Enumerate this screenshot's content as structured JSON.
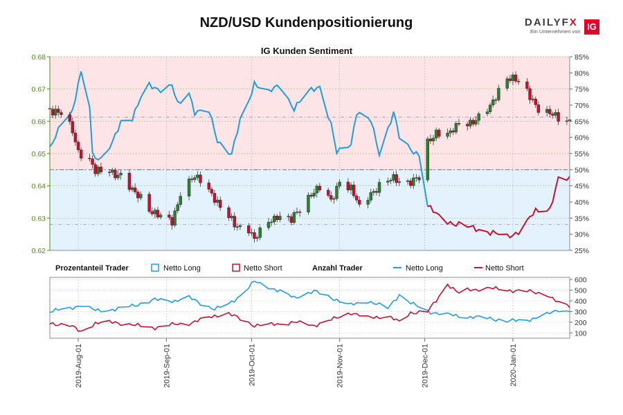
{
  "header": {
    "title": "NZD/USD Kundenpositionierung",
    "logo_text_main": "DAILYF",
    "logo_text_x": "X",
    "logo_subtext": "Ein Unternehmen von",
    "logo_badge": "IG"
  },
  "chart_data": [
    {
      "type": "candlestick",
      "title": "IG Kunden Sentiment",
      "ylim_left": [
        0.62,
        0.68
      ],
      "yticks_left": [
        "0.62",
        "0.63",
        "0.64",
        "0.65",
        "0.66",
        "0.67",
        "0.68"
      ],
      "ylim_right_percent": [
        25,
        85
      ],
      "yticks_right": [
        "25%",
        "30%",
        "35%",
        "40%",
        "45%",
        "50%",
        "55%",
        "60%",
        "65%",
        "70%",
        "75%",
        "80%",
        "85%"
      ],
      "reference_lines": {
        "fifty_percent": 50,
        "price_levels": [
          0.645,
          0.628,
          0.6613
        ]
      },
      "price_close_anchors": [
        [
          "2019-07-22",
          0.664
        ],
        [
          "2019-07-26",
          0.662
        ],
        [
          "2019-07-30",
          0.657
        ],
        [
          "2019-08-01",
          0.651
        ],
        [
          "2019-08-05",
          0.648
        ],
        [
          "2019-08-07",
          0.644
        ],
        [
          "2019-08-12",
          0.645
        ],
        [
          "2019-08-16",
          0.643
        ],
        [
          "2019-08-20",
          0.638
        ],
        [
          "2019-08-23",
          0.637
        ],
        [
          "2019-08-27",
          0.632
        ],
        [
          "2019-08-30",
          0.63
        ],
        [
          "2019-09-03",
          0.629
        ],
        [
          "2019-09-06",
          0.638
        ],
        [
          "2019-09-10",
          0.642
        ],
        [
          "2019-09-13",
          0.642
        ],
        [
          "2019-09-17",
          0.638
        ],
        [
          "2019-09-20",
          0.633
        ],
        [
          "2019-09-25",
          0.628
        ],
        [
          "2019-09-30",
          0.627
        ],
        [
          "2019-10-02",
          0.623
        ],
        [
          "2019-10-07",
          0.629
        ],
        [
          "2019-10-10",
          0.631
        ],
        [
          "2019-10-15",
          0.629
        ],
        [
          "2019-10-18",
          0.633
        ],
        [
          "2019-10-22",
          0.638
        ],
        [
          "2019-10-25",
          0.639
        ],
        [
          "2019-10-29",
          0.635
        ],
        [
          "2019-11-01",
          0.642
        ],
        [
          "2019-11-05",
          0.639
        ],
        [
          "2019-11-08",
          0.633
        ],
        [
          "2019-11-12",
          0.638
        ],
        [
          "2019-11-15",
          0.64
        ],
        [
          "2019-11-20",
          0.642
        ],
        [
          "2019-11-25",
          0.6415
        ],
        [
          "2019-11-29",
          0.642
        ],
        [
          "2019-12-02",
          0.653
        ],
        [
          "2019-12-05",
          0.657
        ],
        [
          "2019-12-10",
          0.656
        ],
        [
          "2019-12-13",
          0.659
        ],
        [
          "2019-12-17",
          0.66
        ],
        [
          "2019-12-20",
          0.661
        ],
        [
          "2019-12-24",
          0.664
        ],
        [
          "2019-12-27",
          0.67
        ],
        [
          "2019-12-30",
          0.674
        ],
        [
          "2020-01-02",
          0.6725
        ],
        [
          "2020-01-06",
          0.669
        ],
        [
          "2020-01-08",
          0.667
        ],
        [
          "2020-01-10",
          0.664
        ],
        [
          "2020-01-14",
          0.662
        ],
        [
          "2020-01-17",
          0.661
        ],
        [
          "2020-01-21",
          0.6605
        ]
      ],
      "netto_long_percent_anchors": [
        [
          "2019-07-22",
          56
        ],
        [
          "2019-07-26",
          65
        ],
        [
          "2019-07-30",
          68
        ],
        [
          "2019-08-02",
          80
        ],
        [
          "2019-08-05",
          70
        ],
        [
          "2019-08-06",
          55
        ],
        [
          "2019-08-09",
          53
        ],
        [
          "2019-08-13",
          58
        ],
        [
          "2019-08-16",
          65
        ],
        [
          "2019-08-20",
          66
        ],
        [
          "2019-08-23",
          72
        ],
        [
          "2019-08-26",
          76
        ],
        [
          "2019-08-30",
          75
        ],
        [
          "2019-09-03",
          76
        ],
        [
          "2019-09-05",
          70
        ],
        [
          "2019-09-09",
          74
        ],
        [
          "2019-09-11",
          68
        ],
        [
          "2019-09-16",
          68
        ],
        [
          "2019-09-19",
          59
        ],
        [
          "2019-09-24",
          55
        ],
        [
          "2019-09-27",
          65
        ],
        [
          "2019-09-30",
          71
        ],
        [
          "2019-10-02",
          77
        ],
        [
          "2019-10-07",
          74
        ],
        [
          "2019-10-11",
          76
        ],
        [
          "2019-10-16",
          69
        ],
        [
          "2019-10-21",
          74
        ],
        [
          "2019-10-25",
          76
        ],
        [
          "2019-10-29",
          64
        ],
        [
          "2019-10-31",
          55
        ],
        [
          "2019-11-05",
          58
        ],
        [
          "2019-11-07",
          68
        ],
        [
          "2019-11-12",
          65
        ],
        [
          "2019-11-15",
          55
        ],
        [
          "2019-11-20",
          68
        ],
        [
          "2019-11-22",
          60
        ],
        [
          "2019-11-26",
          56
        ],
        [
          "2019-11-29",
          55
        ],
        [
          "2019-12-02",
          39
        ],
        [
          "2019-12-05",
          36
        ],
        [
          "2019-12-09",
          34
        ],
        [
          "2019-12-13",
          33
        ],
        [
          "2019-12-17",
          32
        ],
        [
          "2019-12-23",
          31
        ],
        [
          "2019-12-30",
          29
        ],
        [
          "2020-01-03",
          31
        ],
        [
          "2020-01-06",
          34
        ],
        [
          "2020-01-09",
          37
        ],
        [
          "2020-01-14",
          38
        ],
        [
          "2020-01-17",
          47
        ],
        [
          "2020-01-21",
          47
        ]
      ]
    },
    {
      "type": "line",
      "legend": {
        "section_percent": "Prozentanteil Trader",
        "netto_long": "Netto Long",
        "netto_short": "Netto Short",
        "section_count": "Anzahl Trader"
      },
      "ylim": [
        50,
        620
      ],
      "yticks": [
        "100",
        "200",
        "300",
        "400",
        "500",
        "600"
      ],
      "series": [
        {
          "name": "Netto Long",
          "color": "#1f9ce0",
          "anchors": [
            [
              "2019-07-22",
              300
            ],
            [
              "2019-07-29",
              330
            ],
            [
              "2019-08-02",
              360
            ],
            [
              "2019-08-07",
              310
            ],
            [
              "2019-08-14",
              320
            ],
            [
              "2019-08-21",
              360
            ],
            [
              "2019-08-28",
              410
            ],
            [
              "2019-09-04",
              400
            ],
            [
              "2019-09-09",
              430
            ],
            [
              "2019-09-13",
              380
            ],
            [
              "2019-09-18",
              320
            ],
            [
              "2019-09-23",
              370
            ],
            [
              "2019-09-27",
              450
            ],
            [
              "2019-10-02",
              580
            ],
            [
              "2019-10-09",
              510
            ],
            [
              "2019-10-16",
              430
            ],
            [
              "2019-10-23",
              490
            ],
            [
              "2019-10-30",
              420
            ],
            [
              "2019-11-05",
              360
            ],
            [
              "2019-11-11",
              400
            ],
            [
              "2019-11-18",
              330
            ],
            [
              "2019-11-22",
              460
            ],
            [
              "2019-11-26",
              380
            ],
            [
              "2019-12-02",
              300
            ],
            [
              "2019-12-09",
              270
            ],
            [
              "2019-12-16",
              250
            ],
            [
              "2019-12-23",
              240
            ],
            [
              "2019-12-30",
              210
            ],
            [
              "2020-01-06",
              220
            ],
            [
              "2020-01-13",
              270
            ],
            [
              "2020-01-17",
              320
            ],
            [
              "2020-01-21",
              300
            ]
          ]
        },
        {
          "name": "Netto Short",
          "color": "#c8102e",
          "anchors": [
            [
              "2019-07-22",
              190
            ],
            [
              "2019-07-29",
              170
            ],
            [
              "2019-08-02",
              110
            ],
            [
              "2019-08-07",
              190
            ],
            [
              "2019-08-14",
              200
            ],
            [
              "2019-08-21",
              170
            ],
            [
              "2019-08-28",
              150
            ],
            [
              "2019-09-04",
              180
            ],
            [
              "2019-09-09",
              190
            ],
            [
              "2019-09-13",
              220
            ],
            [
              "2019-09-18",
              260
            ],
            [
              "2019-09-23",
              280
            ],
            [
              "2019-09-27",
              230
            ],
            [
              "2019-10-02",
              170
            ],
            [
              "2019-10-09",
              180
            ],
            [
              "2019-10-16",
              200
            ],
            [
              "2019-10-23",
              170
            ],
            [
              "2019-10-30",
              230
            ],
            [
              "2019-11-05",
              290
            ],
            [
              "2019-11-11",
              240
            ],
            [
              "2019-11-18",
              260
            ],
            [
              "2019-11-22",
              200
            ],
            [
              "2019-11-26",
              290
            ],
            [
              "2019-12-02",
              300
            ],
            [
              "2019-12-05",
              400
            ],
            [
              "2019-12-09",
              560
            ],
            [
              "2019-12-13",
              470
            ],
            [
              "2019-12-16",
              500
            ],
            [
              "2019-12-23",
              520
            ],
            [
              "2019-12-30",
              500
            ],
            [
              "2020-01-06",
              490
            ],
            [
              "2020-01-13",
              460
            ],
            [
              "2020-01-17",
              380
            ],
            [
              "2020-01-21",
              350
            ]
          ]
        }
      ]
    }
  ],
  "x_axis": {
    "range": [
      "2019-07-22",
      "2020-01-21"
    ],
    "ticks": [
      {
        "date": "2019-08-01",
        "label": "2019-Aug-01"
      },
      {
        "date": "2019-09-01",
        "label": "2019-Sep-01"
      },
      {
        "date": "2019-10-01",
        "label": "2019-Oct-01"
      },
      {
        "date": "2019-11-01",
        "label": "2019-Nov-01"
      },
      {
        "date": "2019-12-01",
        "label": "2019-Dec-01"
      },
      {
        "date": "2020-01-01",
        "label": "2020-Jan-01"
      }
    ]
  },
  "colors": {
    "candle_up": "#2e7d32",
    "candle_down": "#c8102e",
    "long_fill": "#e3f2fc",
    "short_fill": "#fde4e6",
    "axis_green": "#4a8a1a"
  }
}
